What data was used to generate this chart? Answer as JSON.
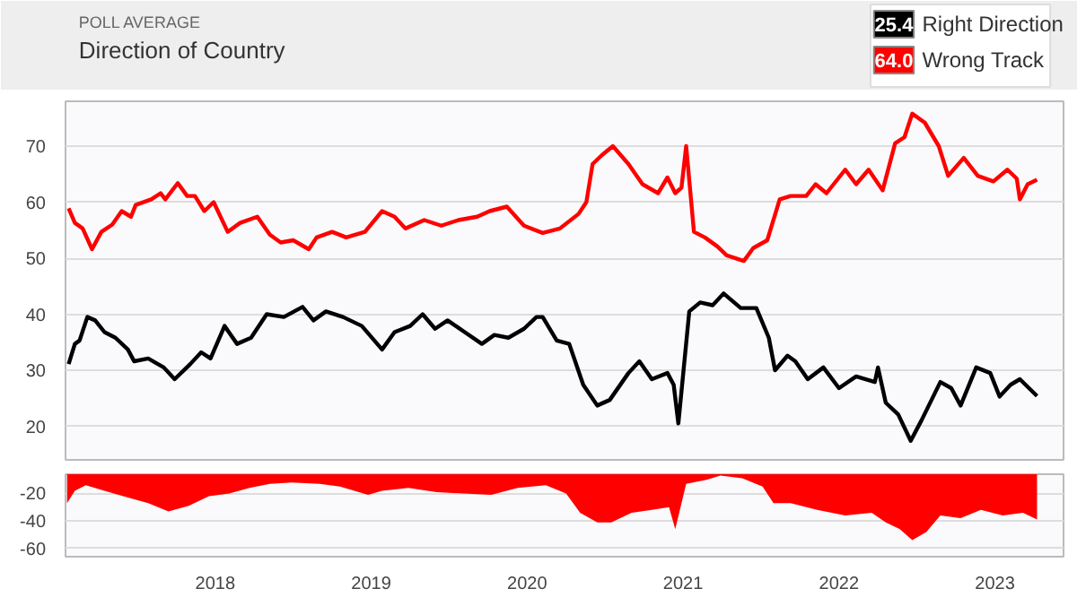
{
  "chart_data": [
    {
      "type": "line",
      "title": "Direction of Country",
      "subtitle": "POLL AVERAGE",
      "xlim": [
        2017.04,
        2023.44
      ],
      "xticks": [
        2018,
        2019,
        2020,
        2021,
        2022,
        2023
      ],
      "ylim": [
        14,
        78
      ],
      "yticks": [
        20,
        30,
        40,
        50,
        60,
        70
      ],
      "grid": "y",
      "legend": "top right",
      "tick_labels": "y",
      "annotations": [
        "25.4",
        "64.0"
      ],
      "series": [
        {
          "name": "Right Direction",
          "color": "#000000",
          "x": [
            2017.06,
            2017.1,
            2017.13,
            2017.18,
            2017.23,
            2017.29,
            2017.36,
            2017.44,
            2017.48,
            2017.57,
            2017.67,
            2017.74,
            2017.84,
            2017.91,
            2017.97,
            2018.06,
            2018.14,
            2018.23,
            2018.33,
            2018.44,
            2018.56,
            2018.63,
            2018.71,
            2018.82,
            2018.94,
            2019.07,
            2019.15,
            2019.25,
            2019.33,
            2019.41,
            2019.49,
            2019.6,
            2019.71,
            2019.79,
            2019.88,
            2019.98,
            2020.06,
            2020.1,
            2020.19,
            2020.27,
            2020.36,
            2020.45,
            2020.53,
            2020.65,
            2020.72,
            2020.8,
            2020.9,
            2020.94,
            2020.97,
            2021.04,
            2021.11,
            2021.19,
            2021.26,
            2021.37,
            2021.47,
            2021.55,
            2021.59,
            2021.67,
            2021.72,
            2021.8,
            2021.9,
            2022.0,
            2022.11,
            2022.23,
            2022.25,
            2022.3,
            2022.38,
            2022.46,
            2022.53,
            2022.65,
            2022.72,
            2022.78,
            2022.88,
            2022.97,
            2023.03,
            2023.1,
            2023.16,
            2023.27
          ],
          "values": [
            31.1,
            34.7,
            35.3,
            39.5,
            38.9,
            36.8,
            35.8,
            33.7,
            31.6,
            32.1,
            30.5,
            28.4,
            31.1,
            33.2,
            32.1,
            37.9,
            34.7,
            35.8,
            40.0,
            39.5,
            41.3,
            38.9,
            40.5,
            39.5,
            37.9,
            33.7,
            36.8,
            37.9,
            40.0,
            37.4,
            38.9,
            36.8,
            34.7,
            36.3,
            35.8,
            37.4,
            39.5,
            39.5,
            35.3,
            34.7,
            27.4,
            23.7,
            24.7,
            29.5,
            31.6,
            28.4,
            29.5,
            27.4,
            20.5,
            40.5,
            42.1,
            41.6,
            43.7,
            41.1,
            41.1,
            35.8,
            30.0,
            32.6,
            31.6,
            28.4,
            30.5,
            26.8,
            28.9,
            27.9,
            30.5,
            24.2,
            22.1,
            17.4,
            21.1,
            27.9,
            26.8,
            23.7,
            30.5,
            29.5,
            25.3,
            27.4,
            28.4,
            25.4
          ]
        },
        {
          "name": "Wrong Track",
          "color": "#ff0000",
          "x": [
            2017.06,
            2017.1,
            2017.15,
            2017.21,
            2017.27,
            2017.34,
            2017.4,
            2017.46,
            2017.49,
            2017.59,
            2017.65,
            2017.68,
            2017.76,
            2017.82,
            2017.87,
            2017.93,
            2017.99,
            2018.08,
            2018.16,
            2018.27,
            2018.35,
            2018.42,
            2018.5,
            2018.6,
            2018.65,
            2018.75,
            2018.84,
            2018.96,
            2019.07,
            2019.15,
            2019.22,
            2019.34,
            2019.45,
            2019.56,
            2019.68,
            2019.76,
            2019.87,
            2019.98,
            2020.1,
            2020.21,
            2020.33,
            2020.38,
            2020.42,
            2020.48,
            2020.55,
            2020.65,
            2020.74,
            2020.84,
            2020.9,
            2020.95,
            2020.99,
            2021.02,
            2021.07,
            2021.14,
            2021.22,
            2021.28,
            2021.39,
            2021.45,
            2021.54,
            2021.62,
            2021.69,
            2021.79,
            2021.85,
            2021.92,
            2022.04,
            2022.11,
            2022.19,
            2022.28,
            2022.36,
            2022.42,
            2022.47,
            2022.55,
            2022.64,
            2022.7,
            2022.8,
            2022.89,
            2022.99,
            2023.08,
            2023.14,
            2023.16,
            2023.21,
            2023.27
          ],
          "values": [
            58.9,
            56.3,
            55.3,
            51.6,
            54.7,
            56.0,
            58.4,
            57.4,
            59.5,
            60.5,
            61.6,
            60.5,
            63.4,
            61.1,
            61.1,
            58.4,
            60.0,
            54.7,
            56.3,
            57.4,
            54.2,
            52.8,
            53.2,
            51.6,
            53.7,
            54.7,
            53.7,
            54.7,
            58.4,
            57.4,
            55.3,
            56.8,
            55.8,
            56.8,
            57.4,
            58.4,
            59.2,
            55.8,
            54.5,
            55.3,
            57.9,
            60.0,
            66.8,
            68.4,
            70.0,
            66.8,
            63.2,
            61.6,
            64.4,
            61.6,
            62.6,
            70.0,
            54.7,
            53.7,
            52.1,
            50.5,
            49.5,
            51.8,
            53.2,
            60.5,
            61.1,
            61.1,
            63.2,
            61.6,
            65.8,
            63.2,
            65.8,
            62.1,
            70.5,
            71.6,
            75.8,
            74.2,
            70.0,
            64.7,
            67.9,
            64.7,
            63.7,
            65.8,
            64.2,
            60.5,
            63.2,
            64.0
          ]
        }
      ]
    },
    {
      "type": "area",
      "xlim": [
        2017.04,
        2023.44
      ],
      "xticks": [
        2018,
        2019,
        2020,
        2021,
        2022,
        2023
      ],
      "ylim": [
        -66,
        -6
      ],
      "yticks": [
        -20,
        -40,
        -60
      ],
      "grid": "y",
      "x": [
        2017.05,
        2017.1,
        2017.17,
        2017.29,
        2017.41,
        2017.57,
        2017.7,
        2017.83,
        2017.96,
        2018.09,
        2018.22,
        2018.35,
        2018.49,
        2018.67,
        2018.8,
        2018.98,
        2019.07,
        2019.24,
        2019.42,
        2019.59,
        2019.77,
        2019.94,
        2020.12,
        2020.25,
        2020.34,
        2020.45,
        2020.54,
        2020.67,
        2020.8,
        2020.91,
        2020.95,
        2021.02,
        2021.15,
        2021.24,
        2021.38,
        2021.51,
        2021.58,
        2021.69,
        2021.86,
        2022.04,
        2022.21,
        2022.3,
        2022.39,
        2022.47,
        2022.56,
        2022.65,
        2022.78,
        2022.91,
        2023.05,
        2023.18,
        2023.27
      ],
      "series": [
        {
          "color": "#ff0000",
          "values": [
            -27,
            -18,
            -14,
            -18,
            -22,
            -27,
            -33,
            -29,
            -22,
            -20,
            -16,
            -13,
            -12,
            -13,
            -15,
            -21,
            -18,
            -16,
            -19,
            -20,
            -21,
            -16,
            -14,
            -20,
            -34,
            -41,
            -41,
            -34,
            -32,
            -30,
            -46,
            -13,
            -10,
            -7,
            -9,
            -15,
            -27,
            -27,
            -32,
            -36,
            -34,
            -41,
            -46,
            -54,
            -48,
            -36,
            -38,
            -32,
            -36,
            -34,
            -39
          ]
        }
      ]
    }
  ]
}
